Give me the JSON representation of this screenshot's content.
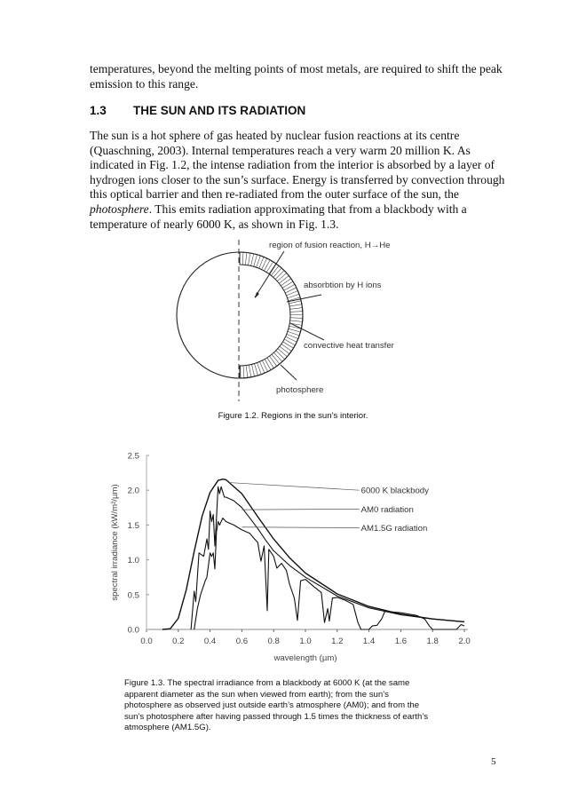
{
  "intro_text": "temperatures, beyond the melting points of most metals, are required to shift the peak emission to this range.",
  "section": {
    "number": "1.3",
    "title": "THE SUN AND ITS RADIATION"
  },
  "paragraph": {
    "before_italic": "The sun is a hot sphere of gas heated by nuclear fusion reactions at its centre (Quaschning, 2003). Internal temperatures reach a very warm 20 million K. As indicated in Fig. 1.2, the intense radiation from the interior is absorbed by a layer of hydrogen ions closer to the sun’s surface. Energy is transferred by convection through this optical barrier and then re-radiated from the outer surface of the sun, the ",
    "italic": "photosphere",
    "after_italic": ". This emits radiation approximating that from a blackbody with a temperature of nearly 6000 K, as shown in Fig. 1.3."
  },
  "figure_1_2": {
    "labels": {
      "fusion": "region of fusion reaction, H→He",
      "absorption": "absorbtion by H ions",
      "convection": "convective heat transfer",
      "photosphere": "photosphere"
    },
    "caption": "Figure 1.2. Regions in the sun’s interior."
  },
  "chart_data": {
    "type": "line",
    "xlabel": "wavelength (µm)",
    "ylabel": "spectral irradiance (kW/m²/µm)",
    "xlim": [
      0,
      2.0
    ],
    "ylim": [
      0,
      2.5
    ],
    "xticks": [
      "0.0",
      "0.2",
      "0.4",
      "0.6",
      "0.8",
      "1.0",
      "1.2",
      "1.4",
      "1.6",
      "1.8",
      "2.0"
    ],
    "yticks": [
      "0.0",
      "0.5",
      "1.0",
      "1.5",
      "2.0",
      "2.5"
    ],
    "grid": false,
    "series": [
      {
        "name": "6000 K blackbody",
        "x": [
          0.1,
          0.15,
          0.2,
          0.25,
          0.3,
          0.35,
          0.4,
          0.45,
          0.48,
          0.5,
          0.6,
          0.7,
          0.8,
          0.9,
          1.0,
          1.2,
          1.4,
          1.6,
          1.8,
          2.0
        ],
        "y": [
          0,
          0.01,
          0.16,
          0.57,
          1.12,
          1.63,
          1.97,
          2.14,
          2.16,
          2.15,
          1.95,
          1.62,
          1.3,
          1.03,
          0.81,
          0.51,
          0.33,
          0.22,
          0.15,
          0.11
        ]
      },
      {
        "name": "AM0 radiation",
        "x": [
          0.28,
          0.3,
          0.31,
          0.33,
          0.36,
          0.38,
          0.39,
          0.4,
          0.41,
          0.42,
          0.43,
          0.44,
          0.45,
          0.46,
          0.47,
          0.49,
          0.5,
          0.55,
          0.6,
          0.65,
          0.7,
          0.75,
          0.8,
          0.9,
          1.0,
          1.2,
          1.4,
          1.6,
          1.8,
          2.0
        ],
        "y": [
          0,
          0.55,
          0.4,
          1.1,
          1.05,
          1.3,
          1.15,
          1.7,
          1.55,
          1.65,
          1.2,
          1.6,
          2.05,
          1.95,
          2.05,
          1.9,
          1.9,
          1.85,
          1.75,
          1.6,
          1.45,
          1.28,
          1.13,
          0.92,
          0.75,
          0.48,
          0.31,
          0.21,
          0.15,
          0.11
        ]
      },
      {
        "name": "AM1.5G radiation",
        "x": [
          0.3,
          0.32,
          0.34,
          0.37,
          0.38,
          0.4,
          0.41,
          0.42,
          0.43,
          0.44,
          0.45,
          0.46,
          0.48,
          0.5,
          0.55,
          0.6,
          0.65,
          0.68,
          0.7,
          0.72,
          0.74,
          0.76,
          0.77,
          0.8,
          0.82,
          0.85,
          0.88,
          0.9,
          0.93,
          0.95,
          0.97,
          1.0,
          1.05,
          1.1,
          1.12,
          1.14,
          1.15,
          1.17,
          1.2,
          1.25,
          1.3,
          1.33,
          1.35,
          1.4,
          1.42,
          1.45,
          1.48,
          1.5,
          1.6,
          1.7,
          1.75,
          1.78,
          1.8,
          1.95,
          1.98,
          2.0
        ],
        "y": [
          0,
          0.3,
          0.5,
          0.7,
          0.75,
          1.1,
          1.05,
          1.1,
          0.87,
          1.4,
          1.55,
          1.5,
          1.6,
          1.55,
          1.5,
          1.43,
          1.38,
          1.3,
          1.25,
          0.98,
          1.2,
          0.27,
          1.15,
          1.05,
          0.88,
          0.95,
          0.85,
          0.65,
          0.45,
          0.13,
          0.7,
          0.72,
          0.62,
          0.53,
          0.1,
          0.3,
          0.12,
          0.45,
          0.46,
          0.42,
          0.36,
          0.1,
          0,
          0,
          0.05,
          0.06,
          0.15,
          0.26,
          0.24,
          0.2,
          0.15,
          0.05,
          0,
          0,
          0.07,
          0.05
        ]
      }
    ],
    "legend": "inline-labels-right"
  },
  "figure_1_3": {
    "caption_lines": [
      "Figure 1.3. The spectral irradiance from a blackbody at 6000 K (at the same",
      "apparent diameter as the sun when viewed from earth); from the sun’s",
      "photosphere as observed just outside earth’s atmosphere (AM0); and from the",
      "sun’s photosphere after having passed through 1.5 times the thickness of earth’s",
      "atmosphere (AM1.5G)."
    ]
  },
  "page_number": "5"
}
